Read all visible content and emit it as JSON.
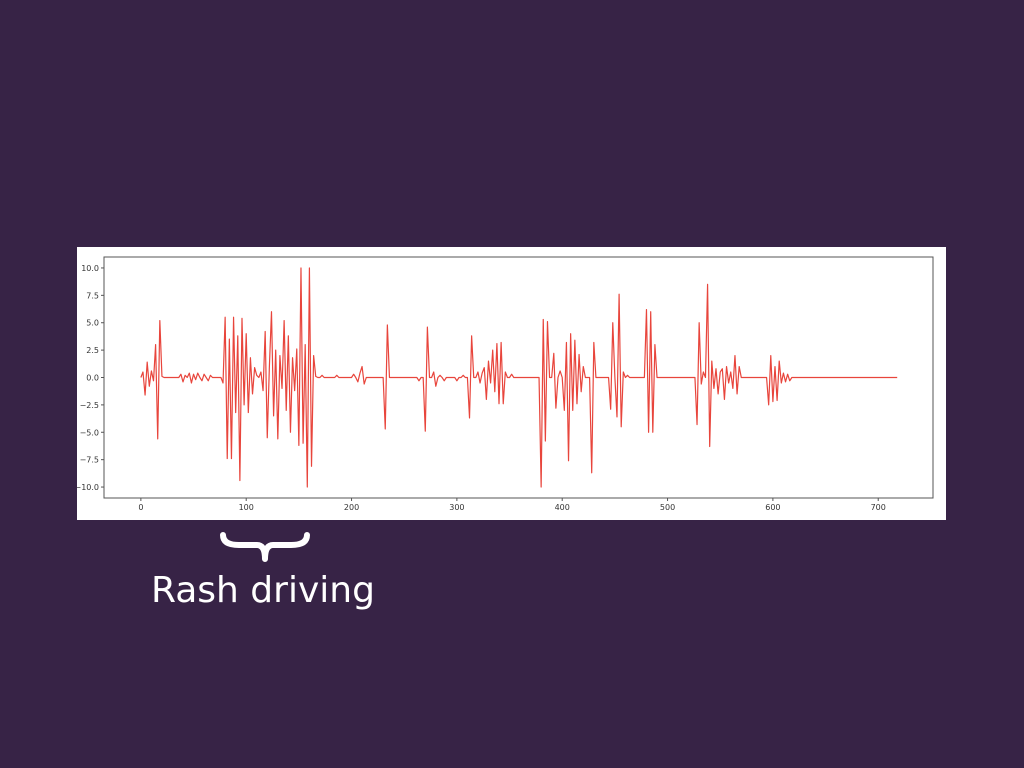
{
  "colors": {
    "background": "#372346",
    "chart_background": "#ffffff",
    "line": "#e8453c",
    "axes": "#555555",
    "annotation_text": "#ffffff"
  },
  "annotation": {
    "label": "Rash driving",
    "range_x": [
      80,
      160
    ]
  },
  "chart_data": {
    "type": "line",
    "title": "",
    "xlabel": "",
    "ylabel": "",
    "xlim": [
      -35,
      752
    ],
    "ylim": [
      -11,
      11
    ],
    "x_ticks": [
      0,
      100,
      200,
      300,
      400,
      500,
      600,
      700
    ],
    "y_ticks": [
      10.0,
      7.5,
      5.0,
      2.5,
      0.0,
      -2.5,
      -5.0,
      -7.5,
      -10.0
    ],
    "grid": false,
    "legend": "none",
    "series": [
      {
        "x_start": 0,
        "x_step": 2,
        "values": [
          0.0,
          0.5,
          -1.6,
          1.4,
          -0.8,
          0.6,
          -0.3,
          3.0,
          -5.6,
          5.2,
          0.1,
          0.0,
          0.0,
          0.0,
          0.0,
          0.0,
          0.0,
          0.0,
          0.0,
          0.3,
          -0.4,
          0.2,
          0.0,
          0.4,
          -0.5,
          0.3,
          -0.2,
          0.4,
          0.0,
          -0.3,
          0.3,
          0.0,
          -0.3,
          0.2,
          0.0,
          0.0,
          0.0,
          0.0,
          0.0,
          -0.5,
          5.5,
          -7.4,
          3.5,
          -7.4,
          5.5,
          -3.2,
          3.8,
          -9.4,
          5.4,
          -2.5,
          4.0,
          -3.2,
          1.8,
          -1.5,
          0.9,
          0.2,
          0.0,
          0.5,
          -1.2,
          4.2,
          -5.5,
          1.0,
          6.0,
          -3.5,
          2.5,
          -5.6,
          2.0,
          -1.0,
          5.2,
          -3.0,
          3.8,
          -5.0,
          1.8,
          -1.2,
          2.6,
          -6.2,
          10.0,
          -6.0,
          3.0,
          -10.0,
          10.0,
          -8.1,
          2.0,
          0.1,
          0.0,
          0.0,
          0.2,
          0.0,
          0.0,
          0.0,
          0.0,
          0.0,
          0.0,
          0.2,
          0.0,
          0.0,
          0.0,
          0.0,
          0.0,
          0.0,
          0.0,
          0.3,
          0.0,
          -0.4,
          0.4,
          1.0,
          -0.6,
          0.0,
          0.0,
          0.0,
          0.0,
          0.0,
          0.0,
          0.0,
          0.0,
          0.0,
          -4.7,
          4.8,
          0.0,
          0.0,
          0.0,
          0.0,
          0.0,
          0.0,
          0.0,
          0.0,
          0.0,
          0.0,
          0.0,
          0.0,
          0.0,
          0.0,
          -0.3,
          0.0,
          0.0,
          -4.9,
          4.6,
          0.0,
          0.0,
          0.5,
          -0.8,
          0.0,
          0.2,
          0.0,
          -0.3,
          0.0,
          0.0,
          0.0,
          0.0,
          0.0,
          -0.3,
          0.0,
          0.0,
          0.2,
          0.0,
          0.0,
          -3.7,
          3.8,
          0.0,
          0.0,
          0.5,
          -0.5,
          0.4,
          0.9,
          -2.0,
          1.5,
          -0.5,
          2.5,
          -1.3,
          3.1,
          -2.4,
          3.2,
          -2.4,
          0.5,
          0.0,
          0.0,
          0.3,
          0.0,
          0.0,
          0.0,
          0.0,
          0.0,
          0.0,
          0.0,
          0.0,
          0.0,
          0.0,
          0.0,
          0.0,
          0.0,
          -10.0,
          5.3,
          -5.8,
          5.1,
          0.0,
          0.0,
          2.2,
          -2.8,
          0.0,
          0.6,
          0.0,
          -3.0,
          3.2,
          -7.6,
          4.0,
          -3.0,
          3.4,
          -2.4,
          2.1,
          -1.3,
          1.0,
          0.0,
          0.0,
          0.0,
          -8.7,
          3.2,
          0.0,
          0.0,
          0.0,
          0.0,
          0.0,
          0.0,
          0.0,
          -2.9,
          5.0,
          0.0,
          -3.6,
          7.6,
          -4.5,
          0.5,
          0.0,
          0.2,
          0.0,
          0.0,
          0.0,
          0.0,
          0.0,
          0.0,
          0.0,
          0.0,
          6.2,
          -5.0,
          6.0,
          -5.0,
          3.0,
          0.0,
          0.0,
          0.0,
          0.0,
          0.0,
          0.0,
          0.0,
          0.0,
          0.0,
          0.0,
          0.0,
          0.0,
          0.0,
          0.0,
          0.0,
          0.0,
          0.0,
          0.0,
          0.0,
          -4.3,
          5.0,
          -0.6,
          0.5,
          0.0,
          8.5,
          -6.3,
          1.5,
          -1.0,
          0.8,
          -1.5,
          0.5,
          0.8,
          -2.0,
          1.0,
          -0.5,
          0.5,
          -1.0,
          2.0,
          -1.5,
          1.0,
          0.0,
          0.0,
          0.0,
          0.0,
          0.0,
          0.0,
          0.0,
          0.0,
          0.0,
          0.0,
          0.0,
          0.0,
          0.0,
          -2.5,
          2.0,
          -2.2,
          1.0,
          -2.1,
          1.5,
          -0.5,
          0.4,
          -0.4,
          0.3,
          -0.3,
          0.0,
          0.0,
          0.0,
          0.0,
          0.0,
          0.0,
          0.0,
          0.0,
          0.0,
          0.0,
          0.0,
          0.0,
          0.0,
          0.0,
          0.0,
          0.0,
          0.0,
          0.0,
          0.0,
          0.0,
          0.0,
          0.0,
          0.0,
          0.0,
          0.0,
          0.0,
          0.0,
          0.0,
          0.0,
          0.0,
          0.0,
          0.0,
          0.0,
          0.0,
          0.0,
          0.0,
          0.0,
          0.0,
          0.0,
          0.0,
          0.0,
          0.0,
          0.0,
          0.0,
          0.0,
          0.0,
          0.0,
          0.0,
          0.0,
          0.0,
          0.0
        ]
      }
    ],
    "note_x_range": [
      0,
      718
    ]
  }
}
